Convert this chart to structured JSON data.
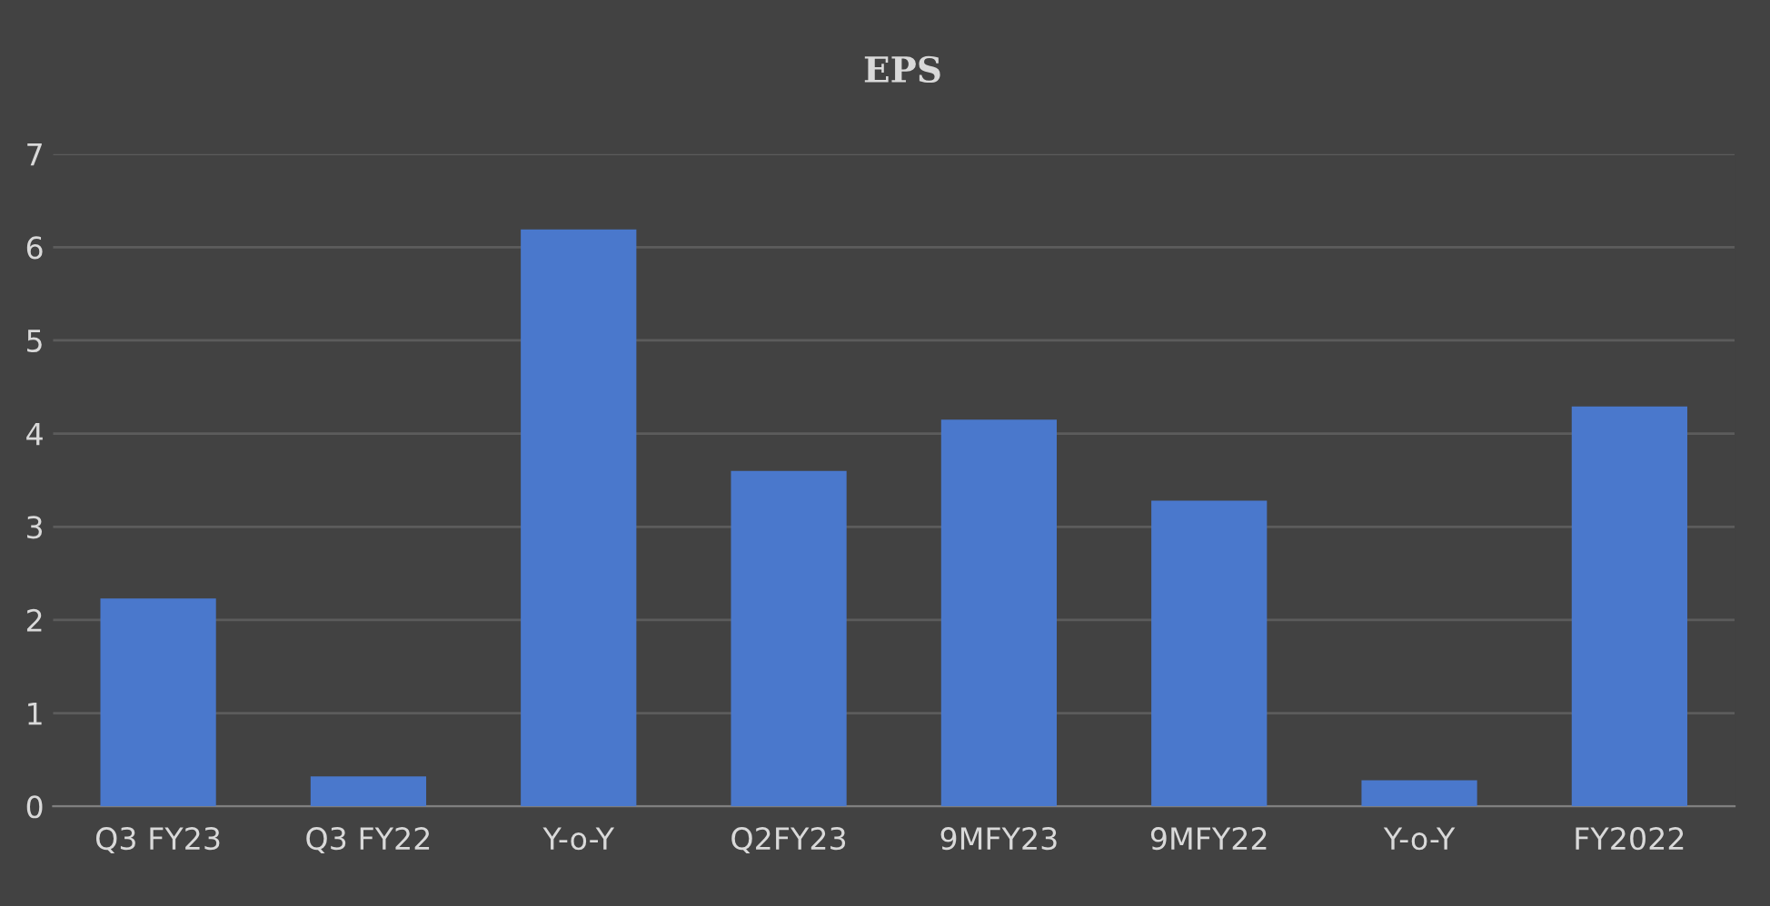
{
  "chart_data": {
    "type": "bar",
    "title": "EPS",
    "categories": [
      "Q3 FY23",
      "Q3 FY22",
      "Y-o-Y",
      "Q2FY23",
      "9MFY23",
      "9MFY22",
      "Y-o-Y",
      "FY2022"
    ],
    "values": [
      2.23,
      0.32,
      6.19,
      3.6,
      4.15,
      3.28,
      0.28,
      4.29
    ],
    "color": "#4a78cc",
    "ylim": [
      0,
      7
    ],
    "yticks": [
      0,
      1,
      2,
      3,
      4,
      5,
      6,
      7
    ],
    "grid": "y",
    "legend": false
  }
}
